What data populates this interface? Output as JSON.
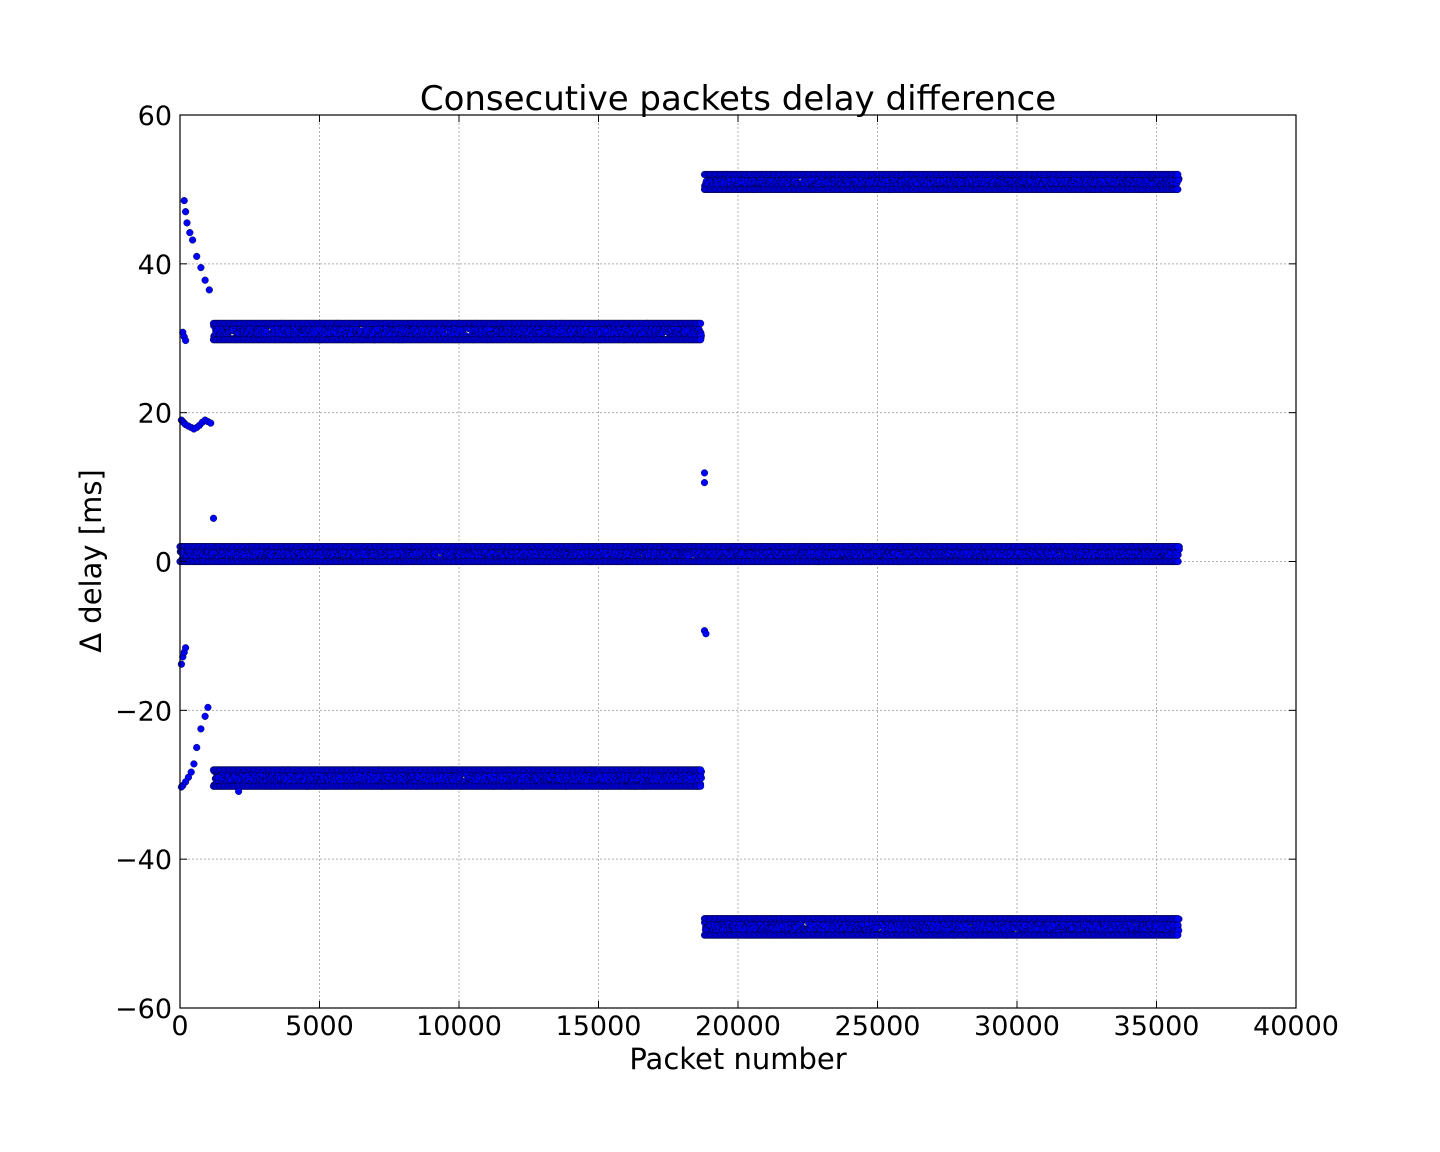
{
  "chart_data": {
    "type": "scatter",
    "title": "Consecutive packets delay difference",
    "xlabel": "Packet number",
    "ylabel": "Δ delay [ms]",
    "xlim": [
      0,
      40000
    ],
    "ylim": [
      -60,
      60
    ],
    "xticks": [
      0,
      5000,
      10000,
      15000,
      20000,
      25000,
      30000,
      35000,
      40000
    ],
    "yticks": [
      -60,
      -40,
      -20,
      0,
      20,
      40,
      60
    ],
    "ytick_labels": [
      "−60",
      "−40",
      "−20",
      "0",
      "20",
      "40",
      "60"
    ],
    "grid": true,
    "marker_color": "#0000ff",
    "bands": [
      {
        "name": "near-zero",
        "x_start": 0,
        "x_end": 35800,
        "y_min": 0,
        "y_max": 2
      },
      {
        "name": "upper-30",
        "x_start": 1200,
        "x_end": 18700,
        "y_min": 29.8,
        "y_max": 32
      },
      {
        "name": "lower-minus-29",
        "x_start": 1200,
        "x_end": 18700,
        "y_min": -30.2,
        "y_max": -28
      },
      {
        "name": "upper-50",
        "x_start": 18800,
        "x_end": 35800,
        "y_min": 50,
        "y_max": 52
      },
      {
        "name": "lower-minus-49",
        "x_start": 18800,
        "x_end": 35800,
        "y_min": -50.2,
        "y_max": -48
      }
    ],
    "isolated_points": [
      {
        "x": 150,
        "y": 48.5
      },
      {
        "x": 200,
        "y": 47
      },
      {
        "x": 250,
        "y": 45.5
      },
      {
        "x": 350,
        "y": 44.2
      },
      {
        "x": 450,
        "y": 43.2
      },
      {
        "x": 600,
        "y": 41
      },
      {
        "x": 750,
        "y": 39.5
      },
      {
        "x": 900,
        "y": 37.8
      },
      {
        "x": 1050,
        "y": 36.5
      },
      {
        "x": 100,
        "y": 30.8
      },
      {
        "x": 150,
        "y": 30.2
      },
      {
        "x": 200,
        "y": 29.7
      },
      {
        "x": 50,
        "y": 19
      },
      {
        "x": 100,
        "y": 18.8
      },
      {
        "x": 150,
        "y": 18.6
      },
      {
        "x": 200,
        "y": 18.4
      },
      {
        "x": 300,
        "y": 18.2
      },
      {
        "x": 400,
        "y": 18
      },
      {
        "x": 500,
        "y": 17.8
      },
      {
        "x": 600,
        "y": 18
      },
      {
        "x": 700,
        "y": 18.3
      },
      {
        "x": 800,
        "y": 18.7
      },
      {
        "x": 900,
        "y": 19
      },
      {
        "x": 1000,
        "y": 18.8
      },
      {
        "x": 1100,
        "y": 18.6
      },
      {
        "x": 1200,
        "y": 5.8
      },
      {
        "x": 18800,
        "y": 11.9
      },
      {
        "x": 18800,
        "y": 10.6
      },
      {
        "x": 18800,
        "y": -9.3
      },
      {
        "x": 18850,
        "y": -9.7
      },
      {
        "x": 50,
        "y": -13.8
      },
      {
        "x": 100,
        "y": -12.8
      },
      {
        "x": 150,
        "y": -12.2
      },
      {
        "x": 200,
        "y": -11.6
      },
      {
        "x": 1000,
        "y": -19.6
      },
      {
        "x": 900,
        "y": -20.8
      },
      {
        "x": 750,
        "y": -22.5
      },
      {
        "x": 600,
        "y": -25
      },
      {
        "x": 500,
        "y": -27.2
      },
      {
        "x": 400,
        "y": -28.3
      },
      {
        "x": 300,
        "y": -29
      },
      {
        "x": 200,
        "y": -29.6
      },
      {
        "x": 100,
        "y": -30.1
      },
      {
        "x": 50,
        "y": -30.3
      },
      {
        "x": 2100,
        "y": -30.9
      }
    ]
  }
}
